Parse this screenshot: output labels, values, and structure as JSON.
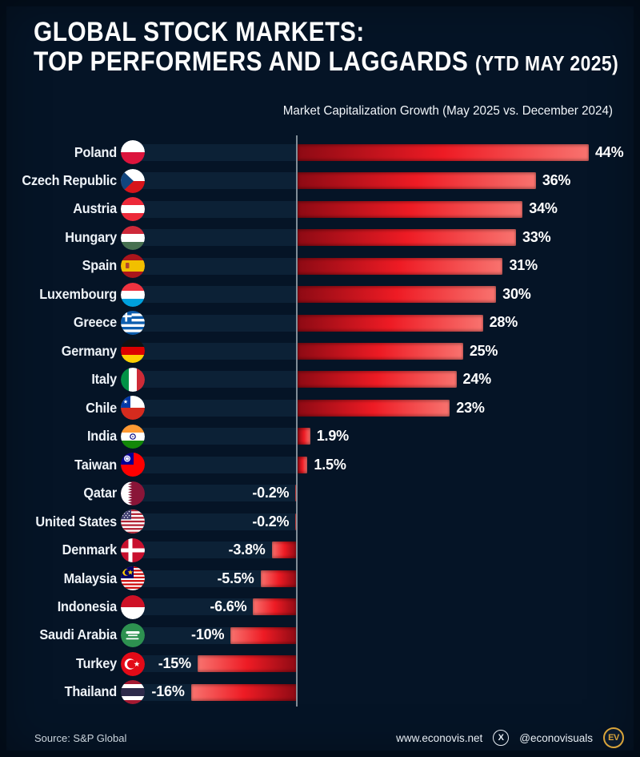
{
  "title": {
    "line1": "GLOBAL STOCK MARKETS:",
    "line2": "TOP PERFORMERS AND LAGGARDS",
    "period": "(YTD MAY 2025)"
  },
  "subtitle": "Market Capitalization Growth (May 2025 vs. December 2024)",
  "chart_data": {
    "type": "bar",
    "orientation": "horizontal",
    "title": "Market Capitalization Growth (May 2025 vs. December 2024)",
    "unit": "%",
    "xlim": [
      -20,
      50
    ],
    "grid": false,
    "legend": "none",
    "categories": [
      "Poland",
      "Czech Republic",
      "Austria",
      "Hungary",
      "Spain",
      "Luxembourg",
      "Greece",
      "Germany",
      "Italy",
      "Chile",
      "India",
      "Taiwan",
      "Qatar",
      "United States",
      "Denmark",
      "Malaysia",
      "Indonesia",
      "Saudi Arabia",
      "Turkey",
      "Thailand"
    ],
    "values": [
      44,
      36,
      34,
      33,
      31,
      30,
      28,
      25,
      24,
      23,
      1.9,
      1.5,
      -0.2,
      -0.2,
      -3.8,
      -5.5,
      -6.6,
      -10,
      -15,
      -16
    ],
    "rows": [
      {
        "country": "Poland",
        "flag": "poland",
        "value": 44,
        "label": "44%"
      },
      {
        "country": "Czech Republic",
        "flag": "czech-republic",
        "value": 36,
        "label": "36%"
      },
      {
        "country": "Austria",
        "flag": "austria",
        "value": 34,
        "label": "34%"
      },
      {
        "country": "Hungary",
        "flag": "hungary",
        "value": 33,
        "label": "33%"
      },
      {
        "country": "Spain",
        "flag": "spain",
        "value": 31,
        "label": "31%"
      },
      {
        "country": "Luxembourg",
        "flag": "luxembourg",
        "value": 30,
        "label": "30%"
      },
      {
        "country": "Greece",
        "flag": "greece",
        "value": 28,
        "label": "28%"
      },
      {
        "country": "Germany",
        "flag": "germany",
        "value": 25,
        "label": "25%"
      },
      {
        "country": "Italy",
        "flag": "italy",
        "value": 24,
        "label": "24%"
      },
      {
        "country": "Chile",
        "flag": "chile",
        "value": 23,
        "label": "23%"
      },
      {
        "country": "India",
        "flag": "india",
        "value": 1.9,
        "label": "1.9%"
      },
      {
        "country": "Taiwan",
        "flag": "taiwan",
        "value": 1.5,
        "label": "1.5%"
      },
      {
        "country": "Qatar",
        "flag": "qatar",
        "value": -0.2,
        "label": "-0.2%"
      },
      {
        "country": "United States",
        "flag": "united-states",
        "value": -0.2,
        "label": "-0.2%"
      },
      {
        "country": "Denmark",
        "flag": "denmark",
        "value": -3.8,
        "label": "-3.8%"
      },
      {
        "country": "Malaysia",
        "flag": "malaysia",
        "value": -5.5,
        "label": "-5.5%"
      },
      {
        "country": "Indonesia",
        "flag": "indonesia",
        "value": -6.6,
        "label": "-6.6%"
      },
      {
        "country": "Saudi Arabia",
        "flag": "saudi-arabia",
        "value": -10,
        "label": "-10%"
      },
      {
        "country": "Turkey",
        "flag": "turkey",
        "value": -15,
        "label": "-15%"
      },
      {
        "country": "Thailand",
        "flag": "thailand",
        "value": -16,
        "label": "-16%"
      }
    ]
  },
  "footer": {
    "source": "Source: S&P Global",
    "website": "www.econovis.net",
    "x_icon": "x-social-icon",
    "x_glyph": "X",
    "handle": "@econovisuals",
    "logo_icon": "econovisuals-ev-logo",
    "logo_text": "EV"
  },
  "colors": {
    "background": "#051426",
    "track": "#0c2136",
    "bar_dark": "#8e0a14",
    "bar_mid": "#ee1b24",
    "bar_light": "#f8736f",
    "axis_line": "#97a2ac",
    "accent_gold": "#d9a43a"
  }
}
